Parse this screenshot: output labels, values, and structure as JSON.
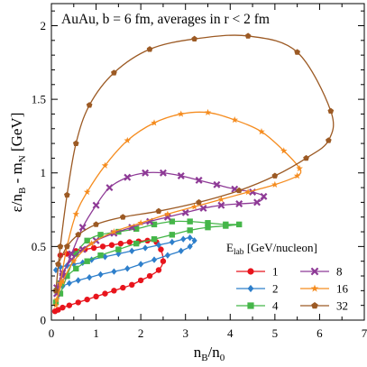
{
  "chart_data": {
    "type": "line",
    "annotation": "AuAu, b = 6 fm, averages in r < 2 fm",
    "xlabel": {
      "main": "n",
      "sub1": "B",
      "mid": "/n",
      "sub2": "0"
    },
    "ylabel": {
      "main": "ε/n",
      "sub1": "B",
      "mid": " - m",
      "sub2": "N",
      "tail": " [GeV]"
    },
    "xlim": [
      0,
      7
    ],
    "ylim": [
      0,
      2.15
    ],
    "xticks": [
      "0",
      "1",
      "2",
      "3",
      "4",
      "5",
      "6",
      "7"
    ],
    "yticks": [
      "0",
      "0.5",
      "1",
      "1.5",
      "2"
    ],
    "legend": {
      "title_main": "E",
      "title_sub": "lab",
      "title_tail": " [GeV/nucleon]",
      "position": "bottom-right",
      "columns": 2
    },
    "series": [
      {
        "name": "1",
        "color": "#e8141c",
        "marker": "circle",
        "x": [
          0.2,
          0.35,
          0.55,
          0.75,
          0.95,
          1.15,
          1.35,
          1.55,
          1.75,
          1.95,
          2.15,
          2.35,
          2.45,
          2.5,
          2.4,
          2.2,
          2.0,
          1.8,
          1.6,
          1.4,
          1.2,
          1.0,
          0.8,
          0.6,
          0.4,
          0.25,
          0.15,
          0.08
        ],
        "y": [
          0.44,
          0.45,
          0.47,
          0.48,
          0.49,
          0.5,
          0.51,
          0.52,
          0.53,
          0.535,
          0.54,
          0.53,
          0.48,
          0.4,
          0.34,
          0.3,
          0.27,
          0.24,
          0.22,
          0.2,
          0.18,
          0.16,
          0.14,
          0.12,
          0.1,
          0.085,
          0.07,
          0.06
        ]
      },
      {
        "name": "2",
        "color": "#2e7fcb",
        "marker": "diamond",
        "x": [
          0.1,
          0.2,
          0.35,
          0.5,
          0.7,
          0.9,
          1.2,
          1.5,
          1.8,
          2.1,
          2.4,
          2.7,
          2.95,
          3.1,
          3.2,
          3.1,
          2.9,
          2.6,
          2.3,
          2.0,
          1.7,
          1.4,
          1.1,
          0.85,
          0.6,
          0.4,
          0.25,
          0.15
        ],
        "y": [
          0.34,
          0.36,
          0.37,
          0.38,
          0.39,
          0.41,
          0.43,
          0.45,
          0.47,
          0.49,
          0.51,
          0.53,
          0.55,
          0.56,
          0.54,
          0.5,
          0.47,
          0.44,
          0.41,
          0.38,
          0.35,
          0.33,
          0.31,
          0.29,
          0.27,
          0.25,
          0.23,
          0.21
        ]
      },
      {
        "name": "4",
        "color": "#45b649",
        "marker": "square",
        "x": [
          0.1,
          0.2,
          0.35,
          0.55,
          0.8,
          1.1,
          1.5,
          1.9,
          2.3,
          2.7,
          3.1,
          3.5,
          3.9,
          4.2,
          3.9,
          3.5,
          3.1,
          2.7,
          2.3,
          1.9,
          1.5,
          1.1,
          0.8,
          0.55,
          0.35,
          0.2,
          0.12
        ],
        "y": [
          0.12,
          0.18,
          0.3,
          0.45,
          0.54,
          0.58,
          0.6,
          0.62,
          0.65,
          0.67,
          0.67,
          0.66,
          0.65,
          0.65,
          0.64,
          0.63,
          0.61,
          0.58,
          0.55,
          0.52,
          0.48,
          0.44,
          0.4,
          0.35,
          0.3,
          0.25,
          0.2
        ]
      },
      {
        "name": "8",
        "color": "#8e3a96",
        "marker": "cross",
        "x": [
          0.12,
          0.25,
          0.45,
          0.7,
          1.0,
          1.3,
          1.7,
          2.1,
          2.5,
          2.9,
          3.3,
          3.7,
          4.1,
          4.5,
          4.75,
          4.6,
          4.2,
          3.8,
          3.4,
          3.0,
          2.6,
          2.2,
          1.8,
          1.4,
          1.0,
          0.7,
          0.45,
          0.25,
          0.12
        ],
        "y": [
          0.18,
          0.3,
          0.45,
          0.63,
          0.78,
          0.9,
          0.97,
          1.0,
          1.0,
          0.98,
          0.95,
          0.92,
          0.89,
          0.87,
          0.84,
          0.8,
          0.79,
          0.78,
          0.76,
          0.73,
          0.7,
          0.67,
          0.63,
          0.59,
          0.54,
          0.48,
          0.41,
          0.32,
          0.22
        ]
      },
      {
        "name": "16",
        "color": "#f58c1f",
        "marker": "star",
        "x": [
          0.1,
          0.2,
          0.35,
          0.55,
          0.8,
          1.2,
          1.7,
          2.3,
          2.9,
          3.5,
          4.1,
          4.7,
          5.2,
          5.55,
          5.5,
          5.0,
          4.4,
          3.8,
          3.2,
          2.6,
          2.0,
          1.4,
          0.9,
          0.5,
          0.25,
          0.12
        ],
        "y": [
          0.1,
          0.25,
          0.5,
          0.72,
          0.87,
          1.05,
          1.22,
          1.34,
          1.4,
          1.41,
          1.36,
          1.28,
          1.15,
          1.03,
          0.98,
          0.92,
          0.87,
          0.82,
          0.77,
          0.72,
          0.66,
          0.6,
          0.52,
          0.4,
          0.26,
          0.14
        ]
      },
      {
        "name": "32",
        "color": "#9c5a24",
        "marker": "pentagon",
        "x": [
          0.1,
          0.2,
          0.35,
          0.55,
          0.85,
          1.4,
          2.2,
          3.2,
          4.4,
          5.5,
          6.25,
          6.2,
          5.7,
          5.0,
          4.2,
          3.3,
          2.4,
          1.6,
          1.0,
          0.6,
          0.35,
          0.15
        ],
        "y": [
          0.2,
          0.5,
          0.85,
          1.2,
          1.46,
          1.68,
          1.84,
          1.91,
          1.93,
          1.82,
          1.42,
          1.22,
          1.1,
          0.98,
          0.88,
          0.8,
          0.74,
          0.7,
          0.65,
          0.58,
          0.5,
          0.38
        ]
      }
    ]
  }
}
